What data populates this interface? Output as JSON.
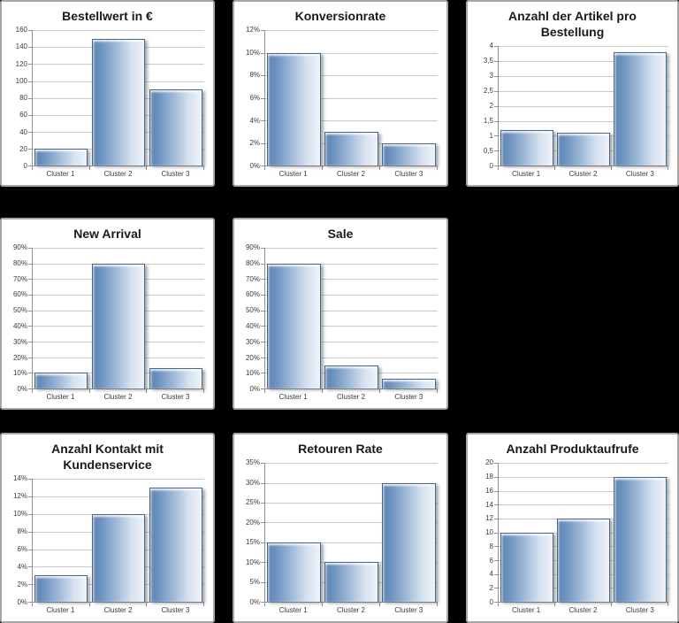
{
  "page": {
    "background_color": "#000000",
    "panel_background": "#ffffff",
    "panel_border_color": "#a6a6a6"
  },
  "style": {
    "bar_color_dark": "#5a81b0",
    "bar_color_light": "#edf2f9",
    "bar_border_color": "#41658f",
    "gridline_color": "#c9c9c9",
    "axis_color": "#8f8f8f",
    "title_color": "#1a1a1a",
    "tick_label_color": "#3a3a3a"
  },
  "categories": [
    "Cluster 1",
    "Cluster 2",
    "Cluster 3"
  ],
  "chart_data": [
    {
      "type": "bar",
      "title": "Bestellwert in €",
      "categories": [
        "Cluster 1",
        "Cluster 2",
        "Cluster 3"
      ],
      "values": [
        20,
        150,
        90
      ],
      "ylim": [
        0,
        160
      ],
      "tick_labels": [
        "0",
        "20",
        "40",
        "60",
        "80",
        "100",
        "120",
        "140",
        "160"
      ],
      "xlabel": "",
      "ylabel": "",
      "grid": true,
      "legend": false
    },
    {
      "type": "bar",
      "title": "Konversionrate",
      "categories": [
        "Cluster 1",
        "Cluster 2",
        "Cluster 3"
      ],
      "values": [
        10,
        3,
        2
      ],
      "ylim": [
        0,
        12
      ],
      "tick_labels": [
        "0%",
        "2%",
        "4%",
        "6%",
        "8%",
        "10%",
        "12%"
      ],
      "xlabel": "",
      "ylabel": "",
      "grid": true,
      "legend": false
    },
    {
      "type": "bar",
      "title": "Anzahl der Artikel pro\nBestellung",
      "categories": [
        "Cluster 1",
        "Cluster 2",
        "Cluster 3"
      ],
      "values": [
        1.2,
        1.1,
        3.8
      ],
      "ylim": [
        0,
        4
      ],
      "tick_labels": [
        "0",
        "0,5",
        "1",
        "1,5",
        "2",
        "2,5",
        "3",
        "3,5",
        "4"
      ],
      "xlabel": "",
      "ylabel": "",
      "grid": true,
      "legend": false
    },
    {
      "type": "bar",
      "title": "New Arrival",
      "categories": [
        "Cluster 1",
        "Cluster 2",
        "Cluster 3"
      ],
      "values": [
        10,
        80,
        13
      ],
      "ylim": [
        0,
        90
      ],
      "tick_labels": [
        "0%",
        "10%",
        "20%",
        "30%",
        "40%",
        "50%",
        "60%",
        "70%",
        "80%",
        "90%"
      ],
      "xlabel": "",
      "ylabel": "",
      "grid": true,
      "legend": false
    },
    {
      "type": "bar",
      "title": "Sale",
      "categories": [
        "Cluster 1",
        "Cluster 2",
        "Cluster 3"
      ],
      "values": [
        80,
        15,
        6
      ],
      "ylim": [
        0,
        90
      ],
      "tick_labels": [
        "0%",
        "10%",
        "20%",
        "30%",
        "40%",
        "50%",
        "60%",
        "70%",
        "80%",
        "90%"
      ],
      "xlabel": "",
      "ylabel": "",
      "grid": true,
      "legend": false
    },
    {
      "type": "bar",
      "title": "Anzahl Kontakt mit\nKundenservice",
      "categories": [
        "Cluster 1",
        "Cluster 2",
        "Cluster 3"
      ],
      "values": [
        3,
        10,
        13
      ],
      "ylim": [
        0,
        14
      ],
      "tick_labels": [
        "0%",
        "2%",
        "4%",
        "6%",
        "8%",
        "10%",
        "12%",
        "14%"
      ],
      "xlabel": "",
      "ylabel": "",
      "grid": true,
      "legend": false
    },
    {
      "type": "bar",
      "title": "Retouren Rate",
      "categories": [
        "Cluster 1",
        "Cluster 2",
        "Cluster 3"
      ],
      "values": [
        15,
        10,
        30
      ],
      "ylim": [
        0,
        35
      ],
      "tick_labels": [
        "0%",
        "5%",
        "10%",
        "15%",
        "20%",
        "25%",
        "30%",
        "35%"
      ],
      "xlabel": "",
      "ylabel": "",
      "grid": true,
      "legend": false
    },
    {
      "type": "bar",
      "title": "Anzahl Produktaufrufe",
      "categories": [
        "Cluster 1",
        "Cluster 2",
        "Cluster 3"
      ],
      "values": [
        10,
        12,
        18
      ],
      "ylim": [
        0,
        20
      ],
      "tick_labels": [
        "0",
        "2",
        "4",
        "6",
        "8",
        "10",
        "12",
        "14",
        "16",
        "18",
        "20"
      ],
      "xlabel": "",
      "ylabel": "",
      "grid": true,
      "legend": false
    }
  ]
}
